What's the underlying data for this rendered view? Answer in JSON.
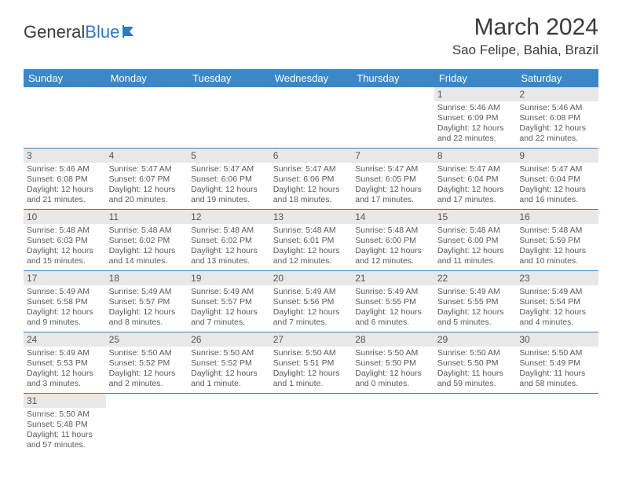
{
  "logo": {
    "text1": "General",
    "text2": "Blue"
  },
  "title": "March 2024",
  "location": "Sao Felipe, Bahia, Brazil",
  "colors": {
    "header_bg": "#3b87c8",
    "header_text": "#ffffff",
    "daynum_bg": "#e8e8e8",
    "cell_border": "#3b87c8",
    "text": "#5a5a5a",
    "logo_blue": "#2c7ac0"
  },
  "weekdays": [
    "Sunday",
    "Monday",
    "Tuesday",
    "Wednesday",
    "Thursday",
    "Friday",
    "Saturday"
  ],
  "weeks": [
    [
      null,
      null,
      null,
      null,
      null,
      {
        "d": "1",
        "sr": "Sunrise: 5:46 AM",
        "ss": "Sunset: 6:09 PM",
        "dl1": "Daylight: 12 hours",
        "dl2": "and 22 minutes."
      },
      {
        "d": "2",
        "sr": "Sunrise: 5:46 AM",
        "ss": "Sunset: 6:08 PM",
        "dl1": "Daylight: 12 hours",
        "dl2": "and 22 minutes."
      }
    ],
    [
      {
        "d": "3",
        "sr": "Sunrise: 5:46 AM",
        "ss": "Sunset: 6:08 PM",
        "dl1": "Daylight: 12 hours",
        "dl2": "and 21 minutes."
      },
      {
        "d": "4",
        "sr": "Sunrise: 5:47 AM",
        "ss": "Sunset: 6:07 PM",
        "dl1": "Daylight: 12 hours",
        "dl2": "and 20 minutes."
      },
      {
        "d": "5",
        "sr": "Sunrise: 5:47 AM",
        "ss": "Sunset: 6:06 PM",
        "dl1": "Daylight: 12 hours",
        "dl2": "and 19 minutes."
      },
      {
        "d": "6",
        "sr": "Sunrise: 5:47 AM",
        "ss": "Sunset: 6:06 PM",
        "dl1": "Daylight: 12 hours",
        "dl2": "and 18 minutes."
      },
      {
        "d": "7",
        "sr": "Sunrise: 5:47 AM",
        "ss": "Sunset: 6:05 PM",
        "dl1": "Daylight: 12 hours",
        "dl2": "and 17 minutes."
      },
      {
        "d": "8",
        "sr": "Sunrise: 5:47 AM",
        "ss": "Sunset: 6:04 PM",
        "dl1": "Daylight: 12 hours",
        "dl2": "and 17 minutes."
      },
      {
        "d": "9",
        "sr": "Sunrise: 5:47 AM",
        "ss": "Sunset: 6:04 PM",
        "dl1": "Daylight: 12 hours",
        "dl2": "and 16 minutes."
      }
    ],
    [
      {
        "d": "10",
        "sr": "Sunrise: 5:48 AM",
        "ss": "Sunset: 6:03 PM",
        "dl1": "Daylight: 12 hours",
        "dl2": "and 15 minutes."
      },
      {
        "d": "11",
        "sr": "Sunrise: 5:48 AM",
        "ss": "Sunset: 6:02 PM",
        "dl1": "Daylight: 12 hours",
        "dl2": "and 14 minutes."
      },
      {
        "d": "12",
        "sr": "Sunrise: 5:48 AM",
        "ss": "Sunset: 6:02 PM",
        "dl1": "Daylight: 12 hours",
        "dl2": "and 13 minutes."
      },
      {
        "d": "13",
        "sr": "Sunrise: 5:48 AM",
        "ss": "Sunset: 6:01 PM",
        "dl1": "Daylight: 12 hours",
        "dl2": "and 12 minutes."
      },
      {
        "d": "14",
        "sr": "Sunrise: 5:48 AM",
        "ss": "Sunset: 6:00 PM",
        "dl1": "Daylight: 12 hours",
        "dl2": "and 12 minutes."
      },
      {
        "d": "15",
        "sr": "Sunrise: 5:48 AM",
        "ss": "Sunset: 6:00 PM",
        "dl1": "Daylight: 12 hours",
        "dl2": "and 11 minutes."
      },
      {
        "d": "16",
        "sr": "Sunrise: 5:48 AM",
        "ss": "Sunset: 5:59 PM",
        "dl1": "Daylight: 12 hours",
        "dl2": "and 10 minutes."
      }
    ],
    [
      {
        "d": "17",
        "sr": "Sunrise: 5:49 AM",
        "ss": "Sunset: 5:58 PM",
        "dl1": "Daylight: 12 hours",
        "dl2": "and 9 minutes."
      },
      {
        "d": "18",
        "sr": "Sunrise: 5:49 AM",
        "ss": "Sunset: 5:57 PM",
        "dl1": "Daylight: 12 hours",
        "dl2": "and 8 minutes."
      },
      {
        "d": "19",
        "sr": "Sunrise: 5:49 AM",
        "ss": "Sunset: 5:57 PM",
        "dl1": "Daylight: 12 hours",
        "dl2": "and 7 minutes."
      },
      {
        "d": "20",
        "sr": "Sunrise: 5:49 AM",
        "ss": "Sunset: 5:56 PM",
        "dl1": "Daylight: 12 hours",
        "dl2": "and 7 minutes."
      },
      {
        "d": "21",
        "sr": "Sunrise: 5:49 AM",
        "ss": "Sunset: 5:55 PM",
        "dl1": "Daylight: 12 hours",
        "dl2": "and 6 minutes."
      },
      {
        "d": "22",
        "sr": "Sunrise: 5:49 AM",
        "ss": "Sunset: 5:55 PM",
        "dl1": "Daylight: 12 hours",
        "dl2": "and 5 minutes."
      },
      {
        "d": "23",
        "sr": "Sunrise: 5:49 AM",
        "ss": "Sunset: 5:54 PM",
        "dl1": "Daylight: 12 hours",
        "dl2": "and 4 minutes."
      }
    ],
    [
      {
        "d": "24",
        "sr": "Sunrise: 5:49 AM",
        "ss": "Sunset: 5:53 PM",
        "dl1": "Daylight: 12 hours",
        "dl2": "and 3 minutes."
      },
      {
        "d": "25",
        "sr": "Sunrise: 5:50 AM",
        "ss": "Sunset: 5:52 PM",
        "dl1": "Daylight: 12 hours",
        "dl2": "and 2 minutes."
      },
      {
        "d": "26",
        "sr": "Sunrise: 5:50 AM",
        "ss": "Sunset: 5:52 PM",
        "dl1": "Daylight: 12 hours",
        "dl2": "and 1 minute."
      },
      {
        "d": "27",
        "sr": "Sunrise: 5:50 AM",
        "ss": "Sunset: 5:51 PM",
        "dl1": "Daylight: 12 hours",
        "dl2": "and 1 minute."
      },
      {
        "d": "28",
        "sr": "Sunrise: 5:50 AM",
        "ss": "Sunset: 5:50 PM",
        "dl1": "Daylight: 12 hours",
        "dl2": "and 0 minutes."
      },
      {
        "d": "29",
        "sr": "Sunrise: 5:50 AM",
        "ss": "Sunset: 5:50 PM",
        "dl1": "Daylight: 11 hours",
        "dl2": "and 59 minutes."
      },
      {
        "d": "30",
        "sr": "Sunrise: 5:50 AM",
        "ss": "Sunset: 5:49 PM",
        "dl1": "Daylight: 11 hours",
        "dl2": "and 58 minutes."
      }
    ],
    [
      {
        "d": "31",
        "sr": "Sunrise: 5:50 AM",
        "ss": "Sunset: 5:48 PM",
        "dl1": "Daylight: 11 hours",
        "dl2": "and 57 minutes."
      },
      null,
      null,
      null,
      null,
      null,
      null
    ]
  ]
}
